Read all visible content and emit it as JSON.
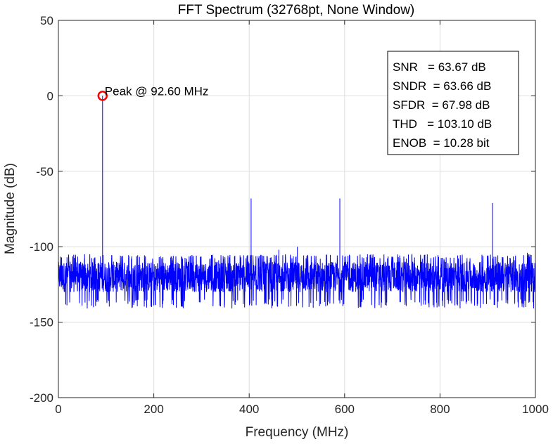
{
  "chart_data": {
    "type": "line",
    "title": "FFT Spectrum (32768pt, None Window)",
    "xlabel": "Frequency (MHz)",
    "ylabel": "Magnitude (dB)",
    "xlim": [
      0,
      1000
    ],
    "ylim": [
      -200,
      50
    ],
    "xticks": [
      0,
      200,
      400,
      600,
      800,
      1000
    ],
    "yticks": [
      -200,
      -150,
      -100,
      -50,
      0,
      50
    ],
    "grid": true,
    "noise_floor": {
      "mean": -120,
      "min": -135,
      "max": -108
    },
    "series": [
      {
        "color": "#0000ff",
        "points": [
          [
            0,
            -200
          ],
          [
            0.6,
            -112
          ],
          [
            18,
            -107
          ],
          [
            55,
            -105
          ],
          [
            92.6,
            0
          ],
          [
            118,
            -112
          ],
          [
            153,
            -108
          ],
          [
            239,
            -109
          ],
          [
            259,
            -107
          ],
          [
            283,
            -110
          ],
          [
            336,
            -109
          ],
          [
            370,
            -106
          ],
          [
            404,
            -68
          ],
          [
            431,
            -110
          ],
          [
            462,
            -102
          ],
          [
            501,
            -100
          ],
          [
            549,
            -108
          ],
          [
            590,
            -68
          ],
          [
            648,
            -105
          ],
          [
            700,
            -113
          ],
          [
            763,
            -108
          ],
          [
            809,
            -109
          ],
          [
            910,
            -71
          ],
          [
            956,
            -109
          ],
          [
            983,
            -104
          ],
          [
            1000,
            -150
          ]
        ]
      }
    ],
    "marker": {
      "x": 92.6,
      "y": 0,
      "color": "#ff0000",
      "label": "Peak @ 92.60 MHz"
    },
    "stats_box": [
      "SNR   = 63.67 dB",
      "SNDR  = 63.66 dB",
      "SFDR  = 67.98 dB",
      "THD   = 103.10 dB",
      "ENOB  = 10.28 bit"
    ],
    "legend": "none"
  }
}
